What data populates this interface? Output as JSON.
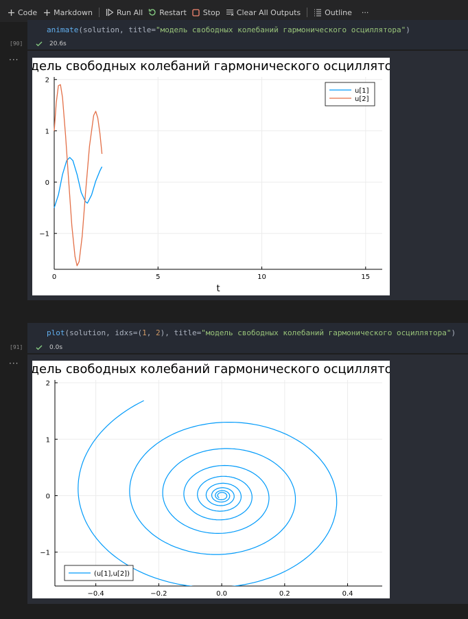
{
  "toolbar": {
    "code_label": "Code",
    "markdown_label": "Markdown",
    "run_all_label": "Run All",
    "restart_label": "Restart",
    "stop_label": "Stop",
    "clear_outputs_label": "Clear All Outputs",
    "outline_label": "Outline",
    "more_label": "···"
  },
  "cells": [
    {
      "exec_count": "[90]",
      "code": {
        "fn": "animate",
        "open": "(",
        "args": "solution, title=",
        "string": "\"модель свободных колебаний гармонического осциллятора\"",
        "close": ")"
      },
      "status_time": "20.6s",
      "more": "···"
    },
    {
      "exec_count": "[91]",
      "code": {
        "fn": "plot",
        "open": "(",
        "args1": "solution, idxs=(",
        "n1": "1",
        "sep": ", ",
        "n2": "2",
        "args2": "), title=",
        "string": "\"модель свободных колебаний гармонического осциллятора\"",
        "close": ")"
      },
      "status_time": "0.0s",
      "more": "···"
    }
  ],
  "chart_data": [
    {
      "type": "line",
      "title": "модель свободных колебаний гармонического осциллятора",
      "xlabel": "t",
      "ylabel": "",
      "xlim": [
        0,
        15.8
      ],
      "ylim": [
        -1.7,
        2.05
      ],
      "xticks": [
        0,
        5,
        10,
        15
      ],
      "xtick_labels": [
        "0",
        "5",
        "10",
        "15"
      ],
      "yticks": [
        -1,
        0,
        1,
        2
      ],
      "ytick_labels": [
        "−1",
        "0",
        "1",
        "2"
      ],
      "grid": true,
      "legend": "top-right",
      "series": [
        {
          "name": "u[1]",
          "color": "#009AFA",
          "x": [
            0,
            0.2,
            0.4,
            0.6,
            0.75,
            0.9,
            1.1,
            1.3,
            1.5,
            1.6,
            1.8,
            2.0,
            2.2,
            2.3
          ],
          "y": [
            -0.5,
            -0.25,
            0.15,
            0.42,
            0.48,
            0.42,
            0.15,
            -0.2,
            -0.38,
            -0.41,
            -0.25,
            0.02,
            0.22,
            0.3
          ]
        },
        {
          "name": "u[2]",
          "color": "#E36F47",
          "x": [
            0,
            0.1,
            0.2,
            0.3,
            0.4,
            0.55,
            0.7,
            0.85,
            1.0,
            1.1,
            1.2,
            1.35,
            1.5,
            1.7,
            1.9,
            2.0,
            2.1,
            2.2,
            2.3
          ],
          "y": [
            1.0,
            1.55,
            1.88,
            1.9,
            1.65,
            0.9,
            0.0,
            -0.85,
            -1.45,
            -1.63,
            -1.55,
            -1.05,
            -0.25,
            0.7,
            1.3,
            1.38,
            1.25,
            0.95,
            0.55
          ]
        }
      ]
    },
    {
      "type": "line",
      "title": "модель свободных колебаний гармонического осциллятора",
      "xlabel": "",
      "ylabel": "",
      "xlim": [
        -0.53,
        0.51
      ],
      "ylim": [
        -1.6,
        2.05
      ],
      "xticks": [
        -0.4,
        -0.2,
        0.0,
        0.2,
        0.4
      ],
      "xtick_labels": [
        "−0.4",
        "−0.2",
        "0.0",
        "0.2",
        "0.4"
      ],
      "yticks": [
        -1,
        0,
        1,
        2
      ],
      "ytick_labels": [
        "−1",
        "0",
        "1",
        "2"
      ],
      "grid": true,
      "legend": "bottom-left",
      "series": [
        {
          "name": "(u[1],u[2])",
          "color": "#009AFA",
          "start": [
            -0.5,
            1.0
          ],
          "end": [
            0.0,
            0.0
          ],
          "turns": 8.3
        }
      ]
    }
  ]
}
